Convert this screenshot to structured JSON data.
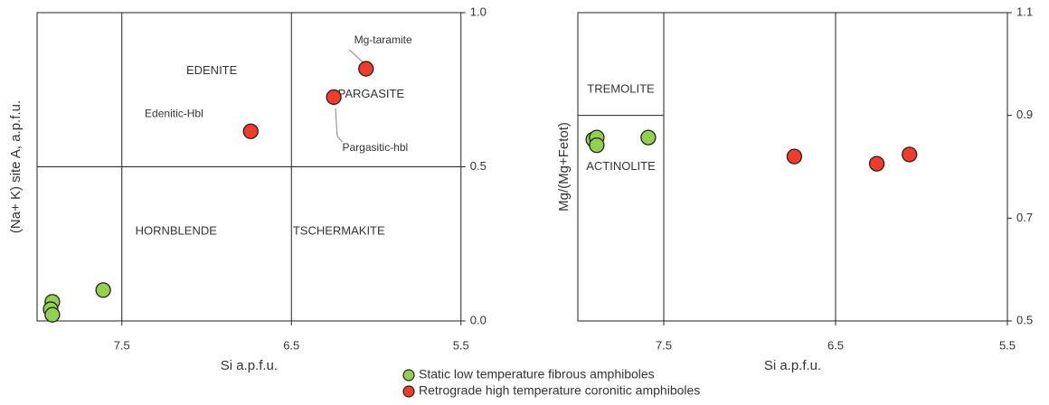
{
  "chart_data": [
    {
      "type": "scatter",
      "x_label": "Si a.p.f.u.",
      "y_label": "(Na+ K) site A, a.p.f.u.",
      "xlim": [
        8.0,
        5.5
      ],
      "xticks": [
        7.5,
        6.5,
        5.5
      ],
      "ylim": [
        0,
        1
      ],
      "yticks": [
        {
          "value": 0,
          "label": "0.0"
        },
        0.5,
        {
          "value": 1,
          "label": "1.0"
        }
      ],
      "dividers_x": [
        7.5,
        6.5
      ],
      "dividers_y": [
        0.5
      ],
      "region_labels": [
        "EDENITE",
        "PARGASITE",
        "HORNBLENDE",
        "TSCHERMAKITE"
      ],
      "point_labels": [
        "Edenitic-Hbl",
        "Pargasitic-hbl",
        "Mg-taramite"
      ],
      "series": [
        {
          "name": "Static low temperature fibrous amphiboles",
          "color": "#92d050",
          "x": [
            7.91,
            7.92,
            7.91,
            7.61
          ],
          "values": [
            0.062,
            0.038,
            0.02,
            0.1
          ]
        },
        {
          "name": "Retrograde high temperature coronitic amphiboles",
          "color": "#f03c28",
          "x": [
            6.74,
            6.25,
            6.06
          ],
          "values": [
            0.615,
            0.726,
            0.818
          ]
        }
      ]
    },
    {
      "type": "scatter",
      "x_label": "Si a.p.f.u.",
      "y_label": "Mg/(Mg+Fetot)",
      "xlim": [
        8.0,
        5.5
      ],
      "xticks": [
        7.5,
        6.5,
        5.5
      ],
      "ylim": [
        0.5,
        1.1
      ],
      "yticks": [
        0.5,
        0.7,
        0.9,
        1.1
      ],
      "dividers_x": [
        7.5,
        6.5
      ],
      "dividers_y": [
        0.9
      ],
      "region_labels": [
        "TREMOLITE",
        "ACTINOLITE"
      ],
      "series": [
        {
          "color": "#92d050",
          "x": [
            7.91,
            7.89,
            7.89,
            7.59
          ],
          "values": [
            0.853,
            0.857,
            0.842,
            0.857
          ]
        },
        {
          "color": "#f03c28",
          "x": [
            6.74,
            6.26,
            6.07
          ],
          "values": [
            0.82,
            0.806,
            0.824
          ]
        }
      ]
    }
  ]
}
